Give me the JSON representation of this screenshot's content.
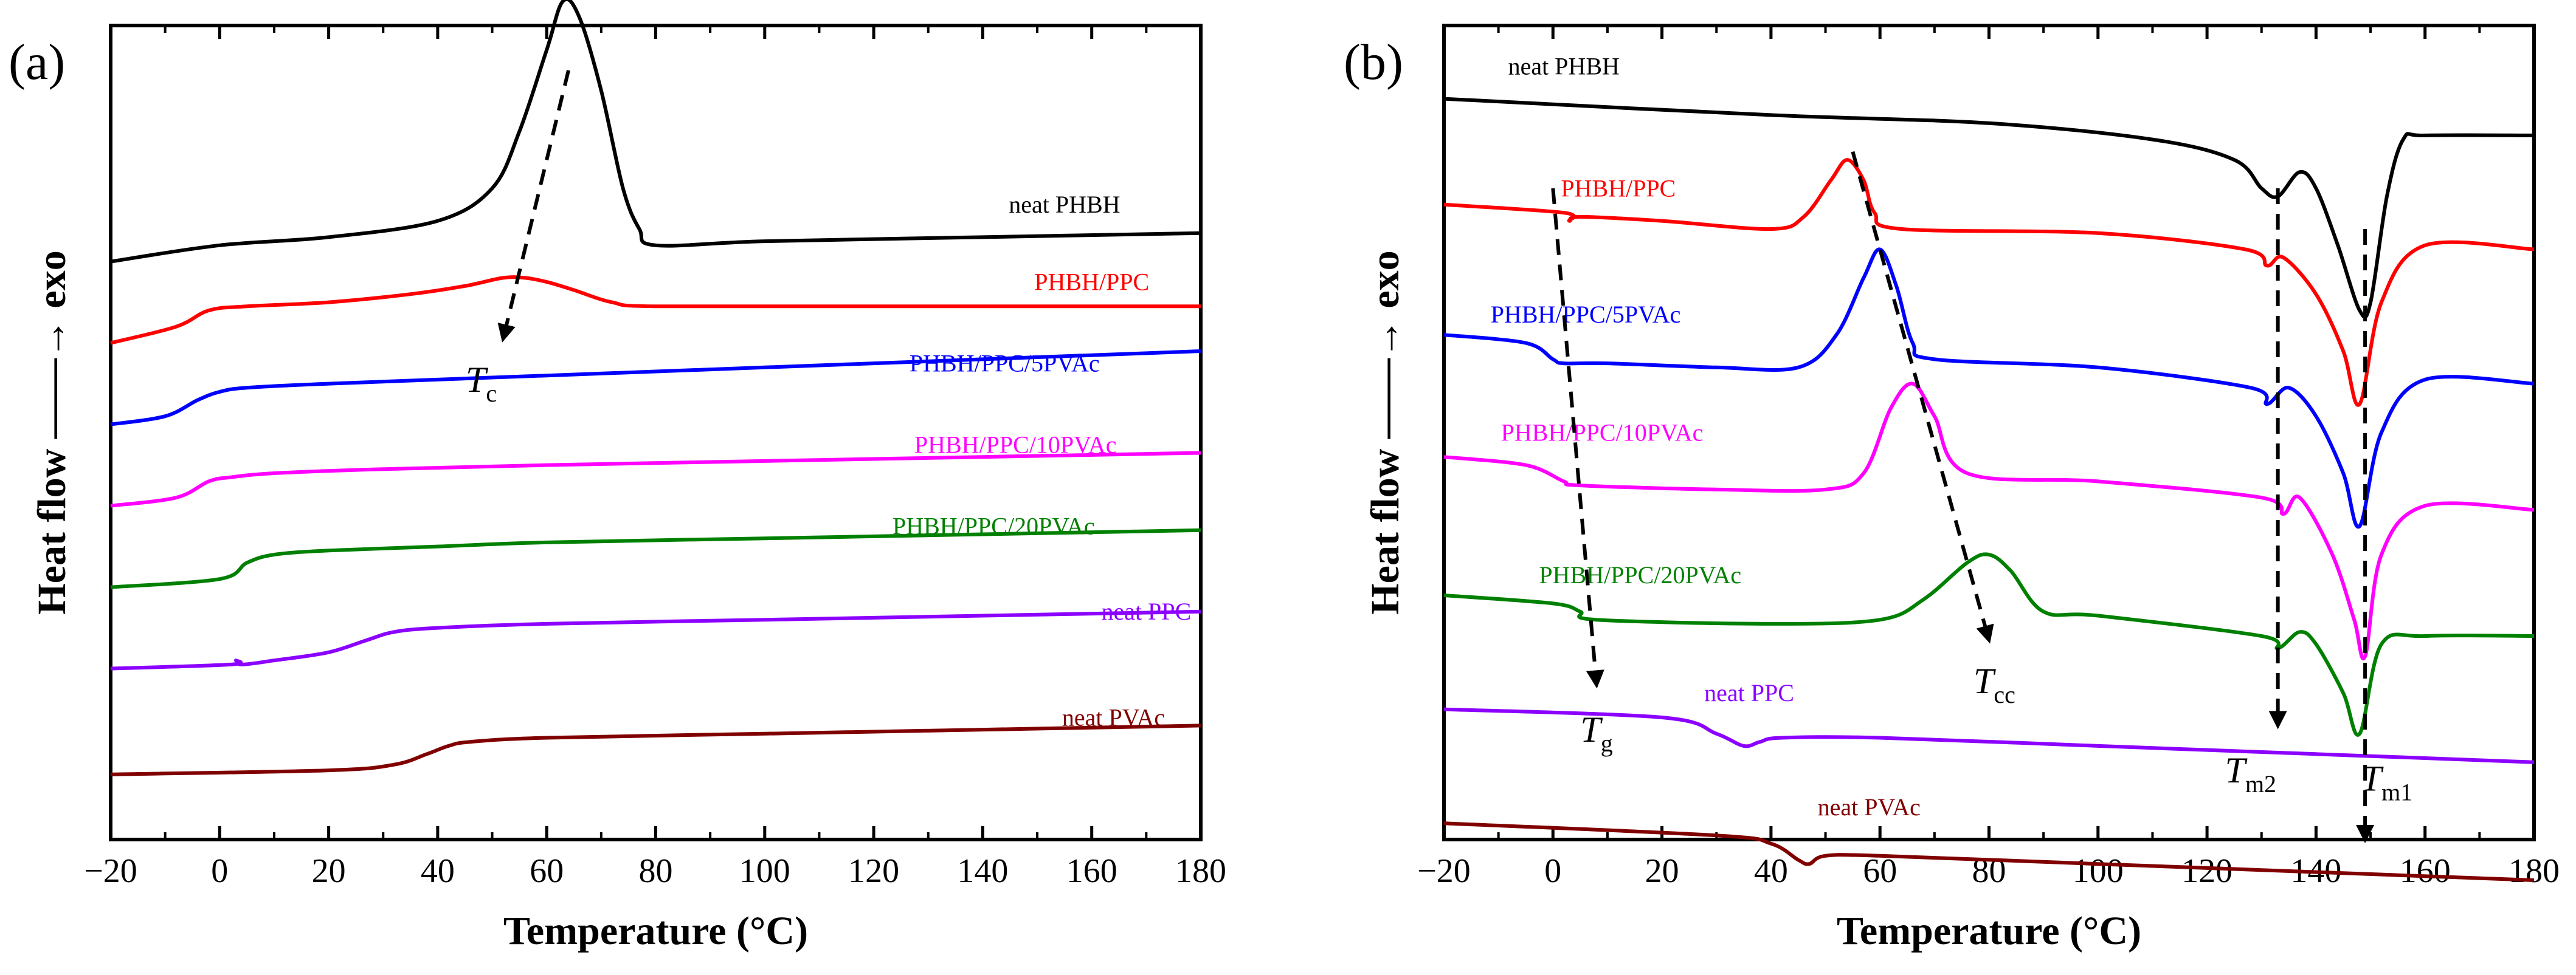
{
  "chart_data": [
    {
      "panel": "(a)",
      "type": "line",
      "xlabel": "Temperature (°C)",
      "ylabel": "Heat flow ——→ exo",
      "xlim": [
        -20,
        180
      ],
      "xticks": [
        -20,
        0,
        20,
        40,
        60,
        80,
        100,
        120,
        140,
        160,
        180
      ],
      "grid": false,
      "series": [
        {
          "name": "neat PHBH",
          "color": "#000000",
          "base": 0.71,
          "x": [
            -20,
            0,
            20,
            40,
            50,
            55,
            60,
            63,
            66,
            70,
            74,
            77,
            80,
            100,
            140,
            180
          ],
          "y": [
            0.0,
            0.02,
            0.03,
            0.05,
            0.09,
            0.16,
            0.26,
            0.32,
            0.3,
            0.21,
            0.09,
            0.04,
            0.02,
            0.025,
            0.03,
            0.035
          ]
        },
        {
          "name": "PHBH/PPC",
          "color": "#ff0000",
          "base": 0.61,
          "x": [
            -20,
            -8,
            -2,
            5,
            20,
            35,
            45,
            52,
            56,
            60,
            65,
            72,
            80,
            120,
            180
          ],
          "y": [
            0.0,
            0.02,
            0.04,
            0.045,
            0.05,
            0.06,
            0.07,
            0.08,
            0.08,
            0.075,
            0.065,
            0.05,
            0.045,
            0.045,
            0.045
          ]
        },
        {
          "name": "PHBH/PPC/5PVAc",
          "color": "#0000ff",
          "base": 0.51,
          "x": [
            -20,
            -10,
            -4,
            0,
            5,
            20,
            60,
            100,
            140,
            180
          ],
          "y": [
            0.0,
            0.01,
            0.03,
            0.04,
            0.045,
            0.05,
            0.06,
            0.07,
            0.08,
            0.09
          ]
        },
        {
          "name": "PHBH/PPC/10PVAc",
          "color": "#ff00ff",
          "base": 0.41,
          "x": [
            -20,
            -8,
            -2,
            2,
            10,
            30,
            60,
            100,
            140,
            180
          ],
          "y": [
            0.0,
            0.01,
            0.03,
            0.035,
            0.04,
            0.045,
            0.05,
            0.055,
            0.06,
            0.065
          ]
        },
        {
          "name": "PHBH/PPC/20PVAc",
          "color": "#008000",
          "base": 0.31,
          "x": [
            -20,
            0,
            5,
            10,
            20,
            40,
            60,
            100,
            140,
            180
          ],
          "y": [
            0.0,
            0.01,
            0.03,
            0.04,
            0.045,
            0.05,
            0.055,
            0.06,
            0.065,
            0.07
          ]
        },
        {
          "name": "neat PPC",
          "color": "#8b00ff",
          "base": 0.21,
          "x": [
            -20,
            2,
            3,
            4,
            10,
            20,
            27,
            32,
            40,
            60,
            100,
            140,
            180
          ],
          "y": [
            0.0,
            0.005,
            0.01,
            0.005,
            0.01,
            0.02,
            0.035,
            0.045,
            0.05,
            0.055,
            0.06,
            0.065,
            0.07
          ]
        },
        {
          "name": "neat PVAc",
          "color": "#800000",
          "base": 0.08,
          "x": [
            -20,
            20,
            32,
            38,
            42,
            46,
            60,
            100,
            140,
            180
          ],
          "y": [
            0.0,
            0.005,
            0.012,
            0.025,
            0.035,
            0.04,
            0.045,
            0.05,
            0.055,
            0.06
          ]
        }
      ],
      "label_positions": [
        {
          "series": "neat PHBH",
          "x": 155,
          "y": 0.77
        },
        {
          "series": "PHBH/PPC",
          "x": 160,
          "y": 0.675
        },
        {
          "series": "PHBH/PPC/5PVAc",
          "x": 144,
          "y": 0.575
        },
        {
          "series": "PHBH/PPC/10PVAc",
          "x": 146,
          "y": 0.475
        },
        {
          "series": "PHBH/PPC/20PVAc",
          "x": 142,
          "y": 0.375
        },
        {
          "series": "neat PPC",
          "x": 170,
          "y": 0.27
        },
        {
          "series": "neat PVAc",
          "x": 164,
          "y": 0.14
        }
      ],
      "annotations": [
        {
          "label": "T",
          "sub": "c",
          "x": 48,
          "y": 0.55,
          "arrow_from": [
            64,
            0.945
          ],
          "arrow_to": [
            52,
            0.615
          ]
        }
      ]
    },
    {
      "panel": "(b)",
      "type": "line",
      "xlabel": "Temperature (°C)",
      "ylabel": "Heat flow ——→ exo",
      "xlim": [
        -20,
        180
      ],
      "xticks": [
        -20,
        0,
        20,
        40,
        60,
        80,
        100,
        120,
        140,
        160,
        180
      ],
      "grid": false,
      "series": [
        {
          "name": "neat PHBH",
          "color": "#000000",
          "base": 0.91,
          "x": [
            -20,
            40,
            80,
            110,
            125,
            130,
            133,
            137,
            140,
            144,
            148,
            150,
            153,
            156,
            160,
            180
          ],
          "y": [
            0.0,
            -0.02,
            -0.03,
            -0.05,
            -0.075,
            -0.11,
            -0.12,
            -0.09,
            -0.11,
            -0.18,
            -0.26,
            -0.25,
            -0.12,
            -0.05,
            -0.045,
            -0.045
          ]
        },
        {
          "name": "PHBH/PPC",
          "color": "#ff0000",
          "base": 0.78,
          "x": [
            -20,
            2,
            3,
            5,
            20,
            40,
            46,
            51,
            54,
            57,
            59,
            64,
            100,
            127,
            131,
            134,
            140,
            145,
            148,
            152,
            160,
            180
          ],
          "y": [
            0.0,
            -0.01,
            -0.02,
            -0.015,
            -0.02,
            -0.03,
            -0.015,
            0.03,
            0.055,
            0.03,
            -0.01,
            -0.03,
            -0.035,
            -0.055,
            -0.075,
            -0.065,
            -0.11,
            -0.18,
            -0.245,
            -0.12,
            -0.05,
            -0.055
          ]
        },
        {
          "name": "PHBH/PPC/5PVAc",
          "color": "#0000ff",
          "base": 0.62,
          "x": [
            -20,
            -5,
            0,
            2,
            10,
            30,
            45,
            52,
            57,
            60,
            63,
            66,
            70,
            100,
            128,
            131,
            135,
            140,
            145,
            148,
            152,
            160,
            180
          ],
          "y": [
            0.0,
            -0.01,
            -0.03,
            -0.035,
            -0.035,
            -0.04,
            -0.04,
            0.0,
            0.07,
            0.105,
            0.06,
            -0.01,
            -0.03,
            -0.04,
            -0.065,
            -0.085,
            -0.065,
            -0.1,
            -0.17,
            -0.235,
            -0.12,
            -0.055,
            -0.06
          ]
        },
        {
          "name": "PHBH/PPC/10PVAc",
          "color": "#ff00ff",
          "base": 0.47,
          "x": [
            -20,
            -5,
            2,
            5,
            30,
            50,
            57,
            62,
            66,
            70,
            76,
            100,
            130,
            134,
            137,
            143,
            147,
            149,
            152,
            160,
            180
          ],
          "y": [
            0.0,
            -0.01,
            -0.03,
            -0.035,
            -0.04,
            -0.04,
            -0.02,
            0.06,
            0.09,
            0.05,
            -0.02,
            -0.03,
            -0.05,
            -0.07,
            -0.05,
            -0.12,
            -0.2,
            -0.245,
            -0.12,
            -0.06,
            -0.065
          ]
        },
        {
          "name": "PHBH/PPC/20PVAc",
          "color": "#008000",
          "base": 0.3,
          "x": [
            -20,
            0,
            5,
            8,
            40,
            60,
            68,
            76,
            80,
            84,
            90,
            100,
            130,
            133,
            137,
            140,
            145,
            148,
            152,
            160,
            180
          ],
          "y": [
            0.0,
            -0.01,
            -0.02,
            -0.03,
            -0.035,
            -0.03,
            -0.005,
            0.04,
            0.05,
            0.03,
            -0.02,
            -0.025,
            -0.05,
            -0.065,
            -0.045,
            -0.06,
            -0.12,
            -0.17,
            -0.06,
            -0.05,
            -0.05
          ]
        },
        {
          "name": "neat PPC",
          "color": "#8b00ff",
          "base": 0.16,
          "x": [
            -20,
            20,
            30,
            35,
            38,
            42,
            60,
            100,
            140,
            180
          ],
          "y": [
            0.0,
            -0.01,
            -0.03,
            -0.045,
            -0.04,
            -0.035,
            -0.035,
            -0.045,
            -0.055,
            -0.065
          ]
        },
        {
          "name": "neat PVAc",
          "color": "#800000",
          "base": 0.02,
          "x": [
            -20,
            30,
            40,
            45,
            47,
            50,
            60,
            100,
            140,
            180
          ],
          "y": [
            0.0,
            -0.015,
            -0.025,
            -0.045,
            -0.05,
            -0.04,
            -0.04,
            -0.05,
            -0.06,
            -0.07
          ]
        }
      ],
      "label_positions": [
        {
          "series": "neat PHBH",
          "x": 2,
          "y": 0.94
        },
        {
          "series": "PHBH/PPC",
          "x": 12,
          "y": 0.79
        },
        {
          "series": "PHBH/PPC/5PVAc",
          "x": 6,
          "y": 0.635
        },
        {
          "series": "PHBH/PPC/10PVAc",
          "x": 9,
          "y": 0.49
        },
        {
          "series": "PHBH/PPC/20PVAc",
          "x": 16,
          "y": 0.315
        },
        {
          "series": "neat PPC",
          "x": 36,
          "y": 0.17
        },
        {
          "series": "neat PVAc",
          "x": 58,
          "y": 0.03
        }
      ],
      "annotations": [
        {
          "label": "T",
          "sub": "g",
          "x": 8,
          "y": 0.12,
          "arrow_from": [
            0,
            0.8
          ],
          "arrow_to": [
            8,
            0.19
          ]
        },
        {
          "label": "T",
          "sub": "cc",
          "x": 81,
          "y": 0.18,
          "arrow_from": [
            55,
            0.845
          ],
          "arrow_to": [
            80,
            0.245
          ]
        },
        {
          "label": "T",
          "sub": "m2",
          "x": 128,
          "y": 0.07,
          "arrow_from": [
            133,
            0.8
          ],
          "arrow_to": [
            133,
            0.14
          ]
        },
        {
          "label": "T",
          "sub": "m1",
          "x": 153,
          "y": 0.06,
          "arrow_from": [
            149,
            0.75
          ],
          "arrow_to": [
            149,
            0.0
          ]
        }
      ]
    }
  ]
}
